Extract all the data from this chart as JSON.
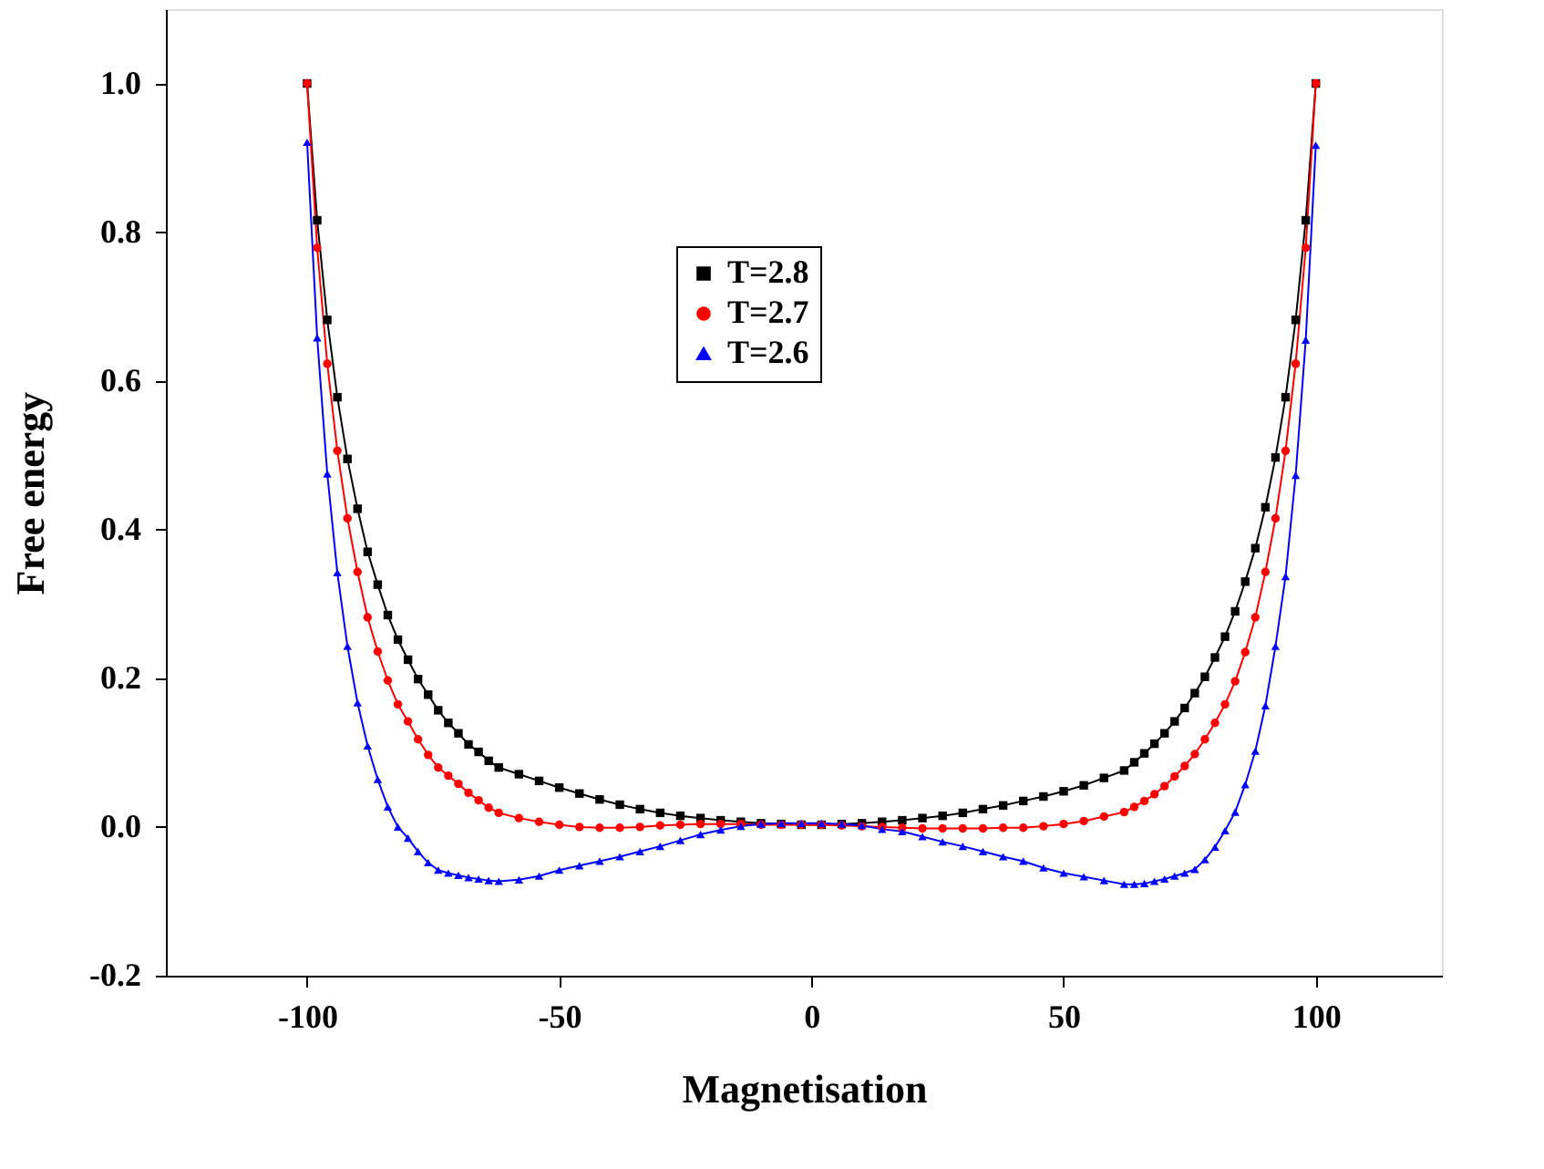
{
  "chart_data": {
    "type": "line",
    "xlabel": "Magnetisation",
    "ylabel": "Free energy",
    "x": [
      -100,
      -98,
      -96,
      -94,
      -92,
      -90,
      -88,
      -86,
      -84,
      -82,
      -80,
      -78,
      -76,
      -74,
      -72,
      -70,
      -68,
      -66,
      -64,
      -62,
      -58,
      -54,
      -50,
      -46,
      -42,
      -38,
      -34,
      -30,
      -26,
      -22,
      -18,
      -14,
      -10,
      -6,
      -2,
      2,
      6,
      10,
      14,
      18,
      22,
      26,
      30,
      34,
      38,
      42,
      46,
      50,
      54,
      58,
      62,
      64,
      66,
      68,
      70,
      72,
      74,
      76,
      78,
      80,
      82,
      84,
      86,
      88,
      90,
      92,
      94,
      96,
      98,
      100
    ],
    "series": [
      {
        "name": "T=2.8",
        "color": "#000000",
        "marker": "square",
        "values": [
          1.0,
          0.816,
          0.682,
          0.578,
          0.495,
          0.428,
          0.37,
          0.326,
          0.285,
          0.252,
          0.225,
          0.199,
          0.178,
          0.157,
          0.14,
          0.126,
          0.111,
          0.101,
          0.089,
          0.08,
          0.071,
          0.062,
          0.053,
          0.045,
          0.037,
          0.03,
          0.024,
          0.019,
          0.015,
          0.012,
          0.009,
          0.007,
          0.005,
          0.004,
          0.003,
          0.003,
          0.004,
          0.005,
          0.007,
          0.009,
          0.012,
          0.015,
          0.019,
          0.024,
          0.029,
          0.035,
          0.041,
          0.048,
          0.056,
          0.066,
          0.076,
          0.087,
          0.099,
          0.112,
          0.126,
          0.142,
          0.16,
          0.18,
          0.202,
          0.228,
          0.256,
          0.29,
          0.33,
          0.375,
          0.43,
          0.497,
          0.578,
          0.682,
          0.816,
          1.0
        ]
      },
      {
        "name": "T=2.7",
        "color": "#ff0000",
        "marker": "circle",
        "values": [
          1.0,
          0.779,
          0.623,
          0.506,
          0.415,
          0.343,
          0.282,
          0.236,
          0.197,
          0.165,
          0.142,
          0.118,
          0.097,
          0.08,
          0.069,
          0.058,
          0.046,
          0.036,
          0.026,
          0.019,
          0.012,
          0.007,
          0.003,
          0.0,
          -0.001,
          -0.001,
          0.0,
          0.002,
          0.003,
          0.004,
          0.004,
          0.004,
          0.003,
          0.003,
          0.003,
          0.003,
          0.002,
          0.001,
          0.0,
          -0.001,
          -0.002,
          -0.002,
          -0.002,
          -0.002,
          -0.001,
          -0.001,
          0.001,
          0.004,
          0.008,
          0.014,
          0.02,
          0.027,
          0.035,
          0.044,
          0.055,
          0.068,
          0.082,
          0.098,
          0.118,
          0.14,
          0.165,
          0.196,
          0.235,
          0.282,
          0.343,
          0.415,
          0.506,
          0.623,
          0.779,
          1.0
        ]
      },
      {
        "name": "T=2.6",
        "color": "#0000ff",
        "marker": "triangle",
        "values": [
          0.921,
          0.658,
          0.475,
          0.342,
          0.243,
          0.167,
          0.109,
          0.064,
          0.027,
          0.0,
          -0.015,
          -0.033,
          -0.048,
          -0.058,
          -0.062,
          -0.065,
          -0.068,
          -0.07,
          -0.072,
          -0.073,
          -0.071,
          -0.066,
          -0.058,
          -0.052,
          -0.046,
          -0.04,
          -0.033,
          -0.026,
          -0.018,
          -0.01,
          -0.004,
          0.001,
          0.004,
          0.005,
          0.005,
          0.005,
          0.004,
          0.002,
          -0.003,
          -0.006,
          -0.013,
          -0.02,
          -0.026,
          -0.033,
          -0.04,
          -0.046,
          -0.055,
          -0.062,
          -0.067,
          -0.072,
          -0.077,
          -0.077,
          -0.076,
          -0.073,
          -0.07,
          -0.066,
          -0.062,
          -0.057,
          -0.044,
          -0.027,
          -0.005,
          0.02,
          0.057,
          0.102,
          0.163,
          0.243,
          0.337,
          0.473,
          0.655,
          0.917
        ]
      }
    ],
    "xlim": [
      -128,
      125
    ],
    "xticks": [
      -100,
      -50,
      0,
      50,
      100
    ],
    "ylim": [
      -0.2,
      1.1
    ],
    "yticks": [
      {
        "value": -0.2,
        "label": "-0.2"
      },
      {
        "value": 0,
        "label": "0.0"
      },
      {
        "value": 0.2,
        "label": "0.2"
      },
      {
        "value": 0.4,
        "label": "0.4"
      },
      {
        "value": 0.6,
        "label": "0.6"
      },
      {
        "value": 0.8,
        "label": "0.8"
      },
      {
        "value": 1.0,
        "label": "1.0"
      }
    ],
    "grid": false,
    "legend": "top",
    "line_style": "solid"
  }
}
